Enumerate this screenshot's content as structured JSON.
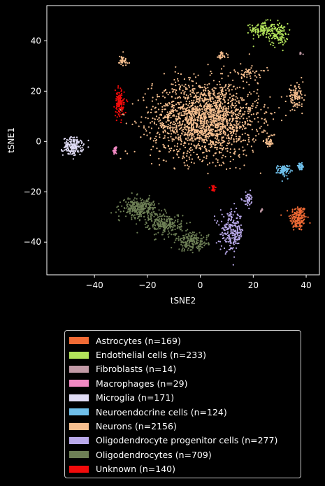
{
  "chart_data": {
    "type": "scatter",
    "xlabel": "tSNE2",
    "ylabel": "tSNE1",
    "xlim": [
      -58,
      45
    ],
    "ylim": [
      -53,
      54
    ],
    "xticks": [
      -40,
      -20,
      0,
      20,
      40
    ],
    "yticks": [
      -40,
      -20,
      0,
      20,
      40
    ],
    "legend_position": "below",
    "series": [
      {
        "name": "Astrocytes (n=169)",
        "color": "#f26b35",
        "clusters": [
          {
            "cx": 37,
            "cy": -30.5,
            "sx": 1.6,
            "sy": 2.6,
            "n": 169
          }
        ]
      },
      {
        "name": "Endothelial cells (n=233)",
        "color": "#b2e25a",
        "clusters": [
          {
            "cx": 23.5,
            "cy": 44.5,
            "sx": 2.2,
            "sy": 1.6,
            "n": 120
          },
          {
            "cx": 29.5,
            "cy": 42.5,
            "sx": 1.8,
            "sy": 2.2,
            "n": 113
          }
        ]
      },
      {
        "name": "Fibroblasts (n=14)",
        "color": "#c29aa6",
        "clusters": [
          {
            "cx": 38,
            "cy": 35,
            "sx": 0.3,
            "sy": 0.3,
            "n": 6
          },
          {
            "cx": 23,
            "cy": -27.5,
            "sx": 0.3,
            "sy": 0.4,
            "n": 8
          }
        ]
      },
      {
        "name": "Macrophages (n=29)",
        "color": "#f089c3",
        "clusters": [
          {
            "cx": -32.3,
            "cy": -3.5,
            "sx": 0.3,
            "sy": 0.6,
            "n": 29
          }
        ]
      },
      {
        "name": "Microglia (n=171)",
        "color": "#e0dcf5",
        "clusters": [
          {
            "cx": -48,
            "cy": -2,
            "sx": 1.9,
            "sy": 1.8,
            "n": 171
          }
        ]
      },
      {
        "name": "Neuroendocrine cells (n=124)",
        "color": "#6fbfea",
        "clusters": [
          {
            "cx": 31.5,
            "cy": -11.5,
            "sx": 1.1,
            "sy": 1.1,
            "n": 84
          },
          {
            "cx": 37.8,
            "cy": -10,
            "sx": 0.8,
            "sy": 0.7,
            "n": 40
          }
        ]
      },
      {
        "name": "Neurons (n=2156)",
        "color": "#f6bf8f",
        "clusters": [
          {
            "cx": 2,
            "cy": 9,
            "sx": 10,
            "sy": 7.5,
            "n": 1900
          },
          {
            "cx": -29.5,
            "cy": 32,
            "sx": 1.2,
            "sy": 1.4,
            "n": 40
          },
          {
            "cx": 8,
            "cy": 34,
            "sx": 1.0,
            "sy": 0.8,
            "n": 30
          },
          {
            "cx": 26,
            "cy": 0,
            "sx": 1.0,
            "sy": 1.2,
            "n": 40
          },
          {
            "cx": 19,
            "cy": 27,
            "sx": 3.0,
            "sy": 1.2,
            "n": 46
          },
          {
            "cx": 36,
            "cy": 18,
            "sx": 1.5,
            "sy": 2.0,
            "n": 100
          }
        ]
      },
      {
        "name": "Oligodendrocyte progenitor cells (n=277)",
        "color": "#b9a9ea",
        "clusters": [
          {
            "cx": 12,
            "cy": -36,
            "sx": 2.2,
            "sy": 3.8,
            "n": 230
          },
          {
            "cx": 18,
            "cy": -23,
            "sx": 1.0,
            "sy": 1.4,
            "n": 47
          }
        ]
      },
      {
        "name": "Oligodendrocytes (n=709)",
        "color": "#6d7f55",
        "clusters": [
          {
            "cx": -23,
            "cy": -26.5,
            "sx": 3.2,
            "sy": 2.0,
            "n": 300
          },
          {
            "cx": -13,
            "cy": -33,
            "sx": 3.0,
            "sy": 2.2,
            "n": 230
          },
          {
            "cx": -3,
            "cy": -40,
            "sx": 3.0,
            "sy": 1.8,
            "n": 179
          }
        ]
      },
      {
        "name": "Unknown (n=140)",
        "color": "#f20b0b",
        "clusters": [
          {
            "cx": -30.5,
            "cy": 15,
            "sx": 0.9,
            "sy": 2.6,
            "n": 120
          },
          {
            "cx": 5,
            "cy": -18.5,
            "sx": 0.5,
            "sy": 0.6,
            "n": 20
          }
        ]
      }
    ]
  }
}
